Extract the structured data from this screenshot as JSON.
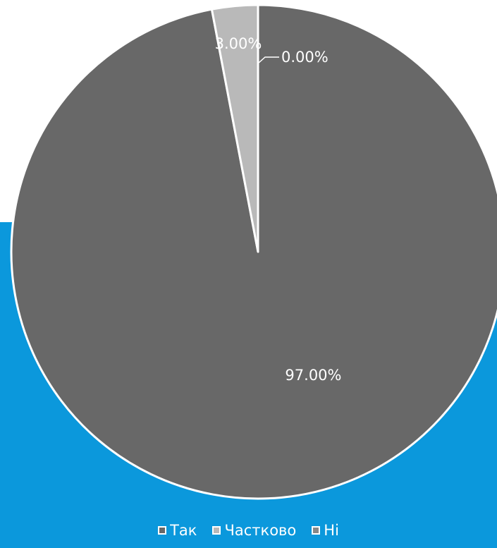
{
  "chart_data": {
    "type": "pie",
    "categories": [
      "Так",
      "Частково",
      "Ні"
    ],
    "values": [
      97.0,
      3.0,
      0.0
    ],
    "value_labels": [
      "97.00%",
      "3.00%",
      "0.00%"
    ],
    "colors": [
      "#686868",
      "#b9b9b9",
      "#888888"
    ],
    "start_angle_deg": 0,
    "direction": "clockwise",
    "legend_position": "bottom",
    "background_panel_color": "#0b98dc"
  }
}
